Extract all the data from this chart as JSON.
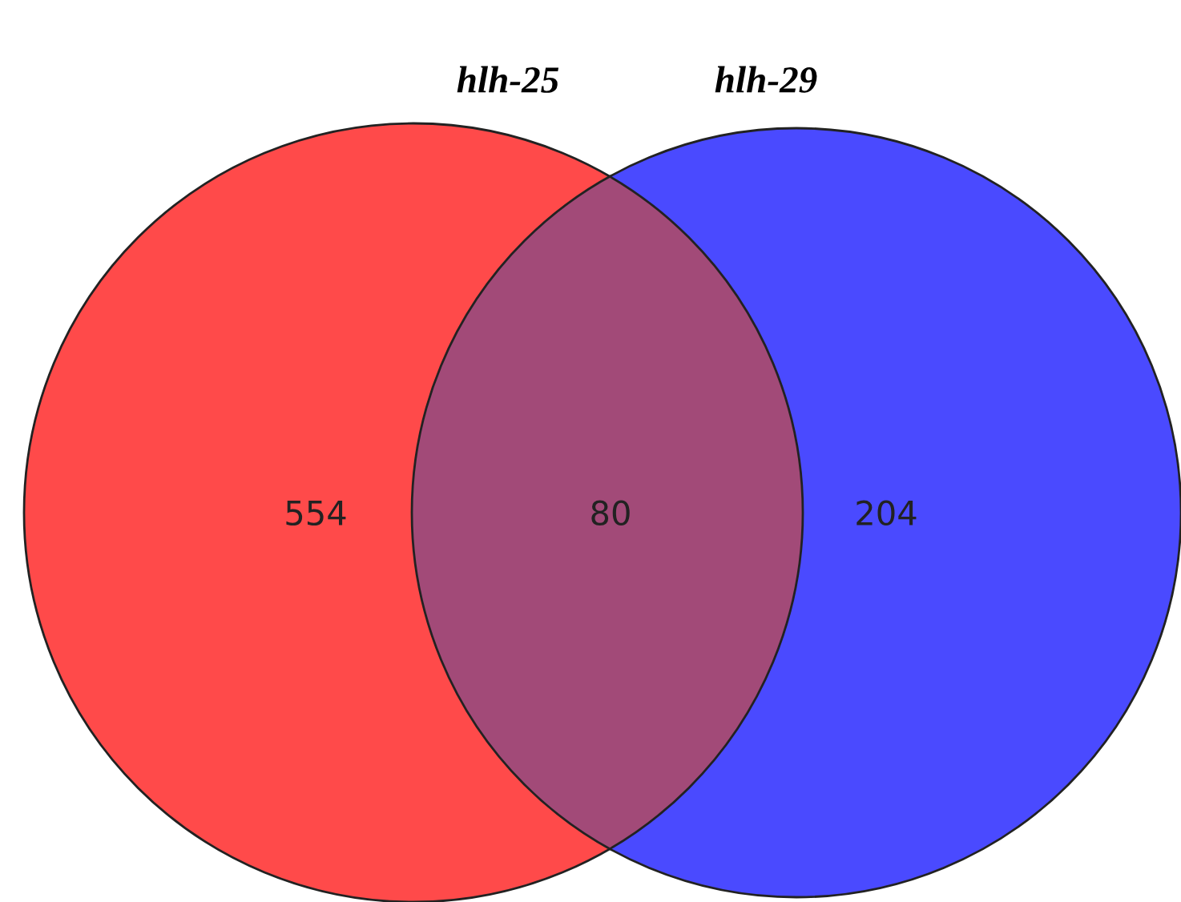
{
  "chart_data": {
    "type": "other",
    "categories": [
      "hlh-25",
      null,
      "hlh-29"
    ],
    "values": [
      554,
      80,
      204
    ],
    "data_labels": true,
    "colors": [
      "#ff4a4a",
      "#a24a78",
      "#4a4aff"
    ]
  }
}
